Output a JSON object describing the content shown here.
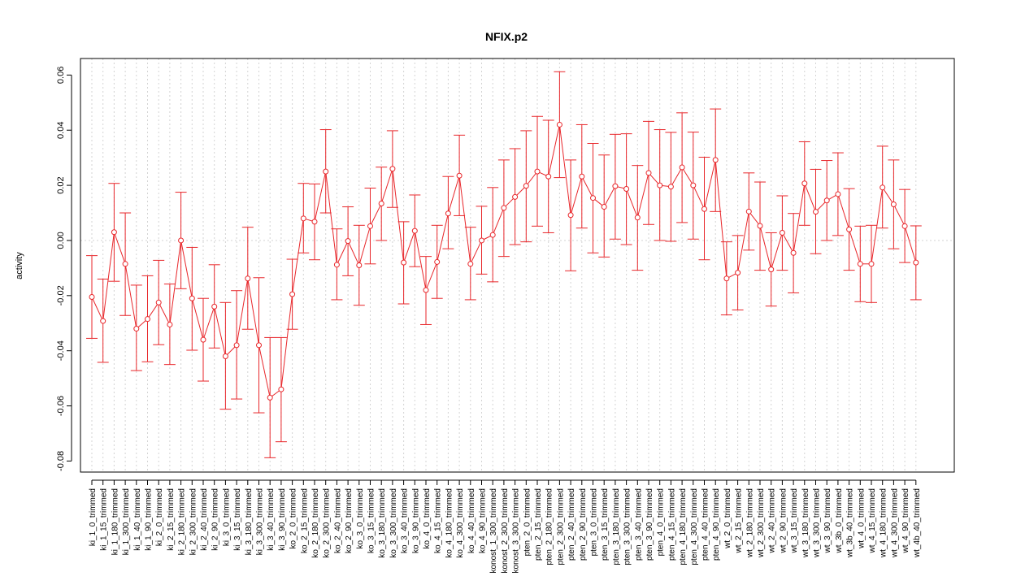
{
  "chart_data": {
    "type": "line",
    "title": "NFIX.p2",
    "xlabel": "",
    "ylabel": "activity",
    "ylim": [
      -0.084,
      0.066
    ],
    "yticks": [
      -0.08,
      -0.06,
      -0.04,
      -0.02,
      0.0,
      0.02,
      0.04,
      0.06
    ],
    "ytick_labels": [
      "-0.08",
      "-0.06",
      "-0.04",
      "-0.02",
      "0.00",
      "0.02",
      "0.04",
      "0.06"
    ],
    "grid": true,
    "color": "#e8262a",
    "categories": [
      "ki_1_0_trimmed",
      "ki_1_15_trimmed",
      "ki_1_180_trimmed",
      "ki_1_300_trimmed",
      "ki_1_40_trimmed",
      "ki_1_90_trimmed",
      "ki_2_0_trimmed",
      "ki_2_15_trimmed",
      "ki_2_180_trimmed",
      "ki_2_300_trimmed",
      "ki_2_40_trimmed",
      "ki_2_90_trimmed",
      "ki_3_0_trimmed",
      "ki_3_15_trimmed",
      "ki_3_180_trimmed",
      "ki_3_300_trimmed",
      "ki_3_40_trimmed",
      "ki_3_90_trimmed",
      "ko_2_0_trimmed",
      "ko_2_15_trimmed",
      "ko_2_180_trimmed",
      "ko_2_300_trimmed",
      "ko_2_40_trimmed",
      "ko_2_90_trimmed",
      "ko_3_0_trimmed",
      "ko_3_15_trimmed",
      "ko_3_180_trimmed",
      "ko_3_300_trimmed",
      "ko_3_40_trimmed",
      "ko_3_90_trimmed",
      "ko_4_0_trimmed",
      "ko_4_15_trimmed",
      "ko_4_180_trimmed",
      "ko_4_300_trimmed",
      "ko_4_40_trimmed",
      "ko_4_90_trimmed",
      "konost_1_300_trimmed",
      "konost_2_300_trimmed",
      "konost_3_300_trimmed",
      "pten_2_0_trimmed",
      "pten_2_15_trimmed",
      "pten_2_180_trimmed",
      "pten_2_300_trimmed",
      "pten_2_40_trimmed",
      "pten_2_90_trimmed",
      "pten_3_0_trimmed",
      "pten_3_15_trimmed",
      "pten_3_180_trimmed",
      "pten_3_300_trimmed",
      "pten_3_40_trimmed",
      "pten_3_90_trimmed",
      "pten_4_0_trimmed",
      "pten_4_15_trimmed",
      "pten_4_180_trimmed",
      "pten_4_300_trimmed",
      "pten_4_40_trimmed",
      "pten_4_90_trimmed",
      "wt_2_0_trimmed",
      "wt_2_15_trimmed",
      "wt_2_180_trimmed",
      "wt_2_300_trimmed",
      "wt_2_40_trimmed",
      "wt_2_90_trimmed",
      "wt_3_15_trimmed",
      "wt_3_180_trimmed",
      "wt_3_300_trimmed",
      "wt_3_90_trimmed",
      "wt_3b_0_trimmed",
      "wt_3b_40_trimmed",
      "wt_4_0_trimmed",
      "wt_4_15_trimmed",
      "wt_4_180_trimmed",
      "wt_4_300_trimmed",
      "wt_4_90_trimmed",
      "wt_4b_40_trimmed"
    ],
    "values": [
      -0.0205,
      -0.0292,
      0.003,
      -0.0085,
      -0.032,
      -0.0285,
      -0.0225,
      -0.0305,
      0.0,
      -0.021,
      -0.036,
      -0.024,
      -0.042,
      -0.038,
      -0.0138,
      -0.038,
      -0.057,
      -0.054,
      -0.0195,
      0.008,
      0.0068,
      0.025,
      -0.0088,
      -0.0002,
      -0.009,
      0.0052,
      0.0134,
      0.026,
      -0.008,
      0.0035,
      -0.018,
      -0.0078,
      0.0098,
      0.0235,
      -0.0085,
      0.0,
      0.002,
      0.0118,
      0.0158,
      0.0198,
      0.025,
      0.0232,
      0.042,
      0.0092,
      0.0232,
      0.0154,
      0.0122,
      0.0197,
      0.0187,
      0.0083,
      0.0245,
      0.02,
      0.0195,
      0.0265,
      0.02,
      0.0114,
      0.0292,
      -0.0138,
      -0.0117,
      0.0105,
      0.0053,
      -0.0105,
      0.0028,
      -0.0045,
      0.0207,
      0.0104,
      0.0145,
      0.0168,
      0.004,
      -0.0085,
      -0.0085,
      0.0192,
      0.0131,
      0.0052,
      -0.008
    ],
    "error_low": [
      -0.0355,
      -0.0442,
      -0.0148,
      -0.0272,
      -0.0472,
      -0.044,
      -0.0378,
      -0.045,
      -0.0175,
      -0.0398,
      -0.051,
      -0.039,
      -0.0612,
      -0.0575,
      -0.0322,
      -0.0625,
      -0.0788,
      -0.073,
      -0.0322,
      -0.0045,
      -0.007,
      0.01,
      -0.0215,
      -0.0128,
      -0.0235,
      -0.0085,
      0.0,
      0.012,
      -0.023,
      -0.0095,
      -0.0305,
      -0.021,
      -0.003,
      0.009,
      -0.0215,
      -0.0122,
      -0.015,
      -0.0058,
      -0.0015,
      -0.0005,
      0.0052,
      0.0028,
      0.0228,
      -0.011,
      0.0045,
      -0.0045,
      -0.006,
      0.0005,
      -0.0015,
      -0.0108,
      0.0058,
      0.0,
      -0.0003,
      0.0065,
      0.0005,
      -0.007,
      0.0105,
      -0.027,
      -0.0252,
      -0.0035,
      -0.0108,
      -0.0238,
      -0.0108,
      -0.019,
      0.0055,
      -0.0048,
      0.0,
      0.0018,
      -0.0108,
      -0.0222,
      -0.0225,
      0.0045,
      -0.003,
      -0.008,
      -0.0215
    ],
    "error_high": [
      -0.0055,
      -0.014,
      0.0207,
      0.01,
      -0.0162,
      -0.0128,
      -0.0072,
      -0.0158,
      0.0175,
      -0.0025,
      -0.021,
      -0.0088,
      -0.0225,
      -0.0182,
      0.0048,
      -0.0135,
      -0.0352,
      -0.0352,
      -0.0068,
      0.0207,
      0.0205,
      0.0402,
      0.0042,
      0.0122,
      0.0055,
      0.019,
      0.0266,
      0.0398,
      0.0068,
      0.0165,
      -0.0058,
      0.0055,
      0.0232,
      0.0382,
      0.0048,
      0.0124,
      0.0192,
      0.0292,
      0.0333,
      0.0398,
      0.045,
      0.0436,
      0.0612,
      0.0292,
      0.042,
      0.0352,
      0.031,
      0.0385,
      0.0387,
      0.0272,
      0.0432,
      0.0402,
      0.0392,
      0.0463,
      0.0393,
      0.0302,
      0.0477,
      -0.0005,
      0.0018,
      0.0245,
      0.0212,
      0.0028,
      0.0162,
      0.0098,
      0.0358,
      0.0258,
      0.029,
      0.0318,
      0.0188,
      0.0052,
      0.0055,
      0.0342,
      0.0292,
      0.0185,
      0.0053
    ]
  }
}
